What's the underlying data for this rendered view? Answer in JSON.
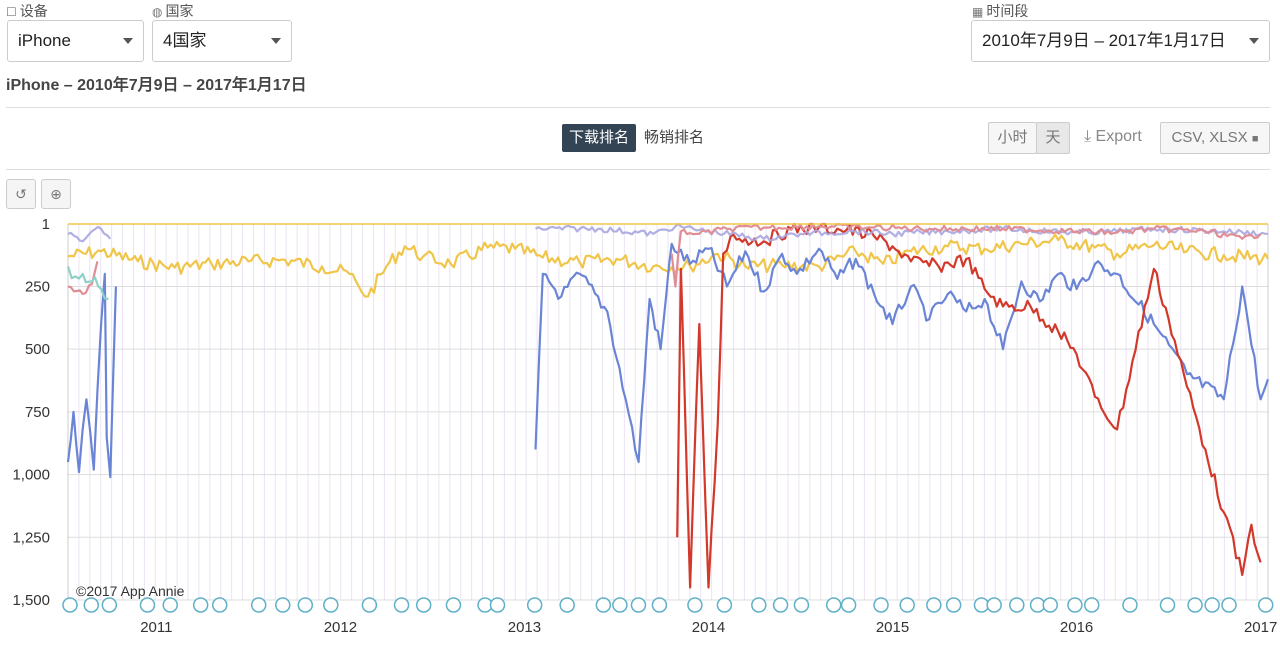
{
  "filters": {
    "device_label": "设备",
    "device_value": "iPhone",
    "country_label": "国家",
    "country_value": "4国家",
    "period_label": "时间段",
    "period_value": "2010年7月9日 – 2017年1月17日"
  },
  "subtitle": "iPhone – 2010年7月9日 – 2017年1月17日",
  "tabs": {
    "active": "下载排名",
    "inactive": "畅销排名"
  },
  "granularity": {
    "hour": "小时",
    "day": "天"
  },
  "export": {
    "label": "Export",
    "formats": "CSV, XLSX"
  },
  "watermark": "©2017 App Annie",
  "colors": {
    "blue": "#6b85d6",
    "yellow": "#f0c64a",
    "red": "#d2392b",
    "lavender": "#a9a6e0",
    "pink": "#e08e95",
    "teal": "#8ed1c6",
    "grid": "#ece3f2"
  },
  "chart_data": {
    "type": "line",
    "title": "",
    "xlabel": "",
    "ylabel": "",
    "y_reversed": true,
    "yticks": [
      "1",
      "250",
      "500",
      "750",
      "1,000",
      "1,250",
      "1,500"
    ],
    "ytick_values": [
      1,
      250,
      500,
      750,
      1000,
      1250,
      1500
    ],
    "xticks": [
      "2011",
      "2012",
      "2013",
      "2014",
      "2015",
      "2016",
      "2017"
    ],
    "xtick_values": [
      2011.0,
      2012.0,
      2013.0,
      2014.0,
      2015.0,
      2016.0,
      2017.0
    ],
    "xlim": [
      2010.52,
      2017.04
    ],
    "ylim": [
      1,
      1500
    ],
    "grid": true,
    "series": [
      {
        "color": "yellow",
        "values": [
          [
            2010.52,
            130
          ],
          [
            2010.7,
            110
          ],
          [
            2010.9,
            150
          ],
          [
            2011.1,
            175
          ],
          [
            2011.3,
            160
          ],
          [
            2011.5,
            150
          ],
          [
            2011.7,
            145
          ],
          [
            2011.9,
            170
          ],
          [
            2012.05,
            200
          ],
          [
            2012.1,
            250
          ],
          [
            2012.15,
            290
          ],
          [
            2012.25,
            170
          ],
          [
            2012.35,
            90
          ],
          [
            2012.45,
            130
          ],
          [
            2012.6,
            160
          ],
          [
            2012.8,
            95
          ],
          [
            2012.95,
            100
          ],
          [
            2013.1,
            135
          ],
          [
            2013.3,
            155
          ],
          [
            2013.5,
            140
          ],
          [
            2013.7,
            170
          ],
          [
            2013.9,
            170
          ],
          [
            2014.05,
            120
          ],
          [
            2014.2,
            170
          ],
          [
            2014.4,
            165
          ],
          [
            2014.6,
            170
          ],
          [
            2014.8,
            110
          ],
          [
            2014.95,
            160
          ],
          [
            2015.1,
            110
          ],
          [
            2015.3,
            90
          ],
          [
            2015.5,
            100
          ],
          [
            2015.7,
            80
          ],
          [
            2015.9,
            65
          ],
          [
            2016.1,
            95
          ],
          [
            2016.22,
            120
          ],
          [
            2016.42,
            85
          ],
          [
            2016.6,
            110
          ],
          [
            2016.8,
            125
          ],
          [
            2017.04,
            140
          ]
        ]
      },
      {
        "color": "blue",
        "values": [
          [
            2010.52,
            950
          ],
          [
            2010.55,
            750
          ],
          [
            2010.58,
            990
          ],
          [
            2010.62,
            700
          ],
          [
            2010.66,
            980
          ],
          [
            2010.7,
            400
          ],
          [
            2010.72,
            200
          ],
          [
            2010.73,
            850
          ],
          [
            2010.75,
            1010
          ],
          [
            2010.78,
            250
          ],
          [
            2013.06,
            900
          ],
          [
            2013.1,
            200
          ],
          [
            2013.2,
            290
          ],
          [
            2013.3,
            200
          ],
          [
            2013.45,
            350
          ],
          [
            2013.55,
            700
          ],
          [
            2013.62,
            950
          ],
          [
            2013.68,
            300
          ],
          [
            2013.74,
            500
          ],
          [
            2013.8,
            80
          ],
          [
            2013.9,
            160
          ],
          [
            2014.0,
            100
          ],
          [
            2014.1,
            250
          ],
          [
            2014.2,
            110
          ],
          [
            2014.3,
            270
          ],
          [
            2014.4,
            120
          ],
          [
            2014.48,
            200
          ],
          [
            2014.6,
            100
          ],
          [
            2014.7,
            220
          ],
          [
            2014.8,
            140
          ],
          [
            2014.9,
            280
          ],
          [
            2015.0,
            400
          ],
          [
            2015.1,
            250
          ],
          [
            2015.2,
            380
          ],
          [
            2015.3,
            280
          ],
          [
            2015.4,
            350
          ],
          [
            2015.5,
            300
          ],
          [
            2015.6,
            500
          ],
          [
            2015.7,
            230
          ],
          [
            2015.8,
            310
          ],
          [
            2015.9,
            200
          ],
          [
            2016.0,
            260
          ],
          [
            2016.1,
            160
          ],
          [
            2016.22,
            200
          ],
          [
            2016.42,
            400
          ],
          [
            2016.6,
            600
          ],
          [
            2016.8,
            700
          ],
          [
            2016.9,
            250
          ],
          [
            2017.0,
            700
          ],
          [
            2017.04,
            620
          ]
        ]
      },
      {
        "color": "red",
        "values": [
          [
            2013.83,
            1250
          ],
          [
            2013.85,
            180
          ],
          [
            2013.9,
            1450
          ],
          [
            2013.95,
            400
          ],
          [
            2014.0,
            1450
          ],
          [
            2014.05,
            800
          ],
          [
            2014.08,
            120
          ],
          [
            2014.12,
            50
          ],
          [
            2014.2,
            60
          ],
          [
            2014.3,
            70
          ],
          [
            2014.45,
            20
          ],
          [
            2014.6,
            15
          ],
          [
            2014.75,
            25
          ],
          [
            2014.9,
            50
          ],
          [
            2015.0,
            90
          ],
          [
            2015.1,
            150
          ],
          [
            2015.25,
            170
          ],
          [
            2015.4,
            140
          ],
          [
            2015.5,
            260
          ],
          [
            2015.6,
            330
          ],
          [
            2015.75,
            330
          ],
          [
            2015.9,
            430
          ],
          [
            2016.0,
            520
          ],
          [
            2016.1,
            690
          ],
          [
            2016.22,
            820
          ],
          [
            2016.42,
            180
          ],
          [
            2016.5,
            380
          ],
          [
            2016.6,
            650
          ],
          [
            2016.7,
            900
          ],
          [
            2016.8,
            1150
          ],
          [
            2016.9,
            1400
          ],
          [
            2016.95,
            1200
          ],
          [
            2017.0,
            1350
          ]
        ]
      },
      {
        "color": "lavender",
        "values": [
          [
            2010.52,
            40
          ],
          [
            2010.6,
            70
          ],
          [
            2010.65,
            30
          ],
          [
            2010.7,
            20
          ],
          [
            2010.75,
            60
          ],
          [
            2013.06,
            20
          ],
          [
            2013.4,
            20
          ],
          [
            2013.7,
            40
          ],
          [
            2013.82,
            10
          ],
          [
            2014.0,
            30
          ],
          [
            2014.3,
            60
          ],
          [
            2014.5,
            40
          ],
          [
            2014.8,
            30
          ],
          [
            2015.0,
            40
          ],
          [
            2015.3,
            30
          ],
          [
            2015.6,
            20
          ],
          [
            2016.0,
            35
          ],
          [
            2016.22,
            30
          ],
          [
            2016.42,
            20
          ],
          [
            2016.8,
            30
          ],
          [
            2017.04,
            40
          ]
        ]
      },
      {
        "color": "pink",
        "values": [
          [
            2010.52,
            250
          ],
          [
            2010.6,
            280
          ],
          [
            2010.65,
            240
          ],
          [
            2010.68,
            150
          ],
          [
            2013.8,
            120
          ],
          [
            2013.82,
            250
          ],
          [
            2013.85,
            30
          ],
          [
            2013.95,
            40
          ],
          [
            2014.1,
            20
          ],
          [
            2014.3,
            15
          ],
          [
            2014.6,
            10
          ],
          [
            2014.9,
            15
          ],
          [
            2015.2,
            20
          ],
          [
            2015.6,
            20
          ],
          [
            2016.0,
            30
          ],
          [
            2016.22,
            35
          ],
          [
            2016.42,
            20
          ],
          [
            2016.7,
            30
          ],
          [
            2016.9,
            60
          ],
          [
            2017.0,
            40
          ]
        ]
      },
      {
        "color": "teal",
        "values": [
          [
            2010.52,
            170
          ],
          [
            2010.56,
            210
          ],
          [
            2010.6,
            200
          ],
          [
            2010.65,
            230
          ],
          [
            2010.7,
            260
          ],
          [
            2010.74,
            300
          ]
        ]
      }
    ],
    "event_markers": 55
  }
}
